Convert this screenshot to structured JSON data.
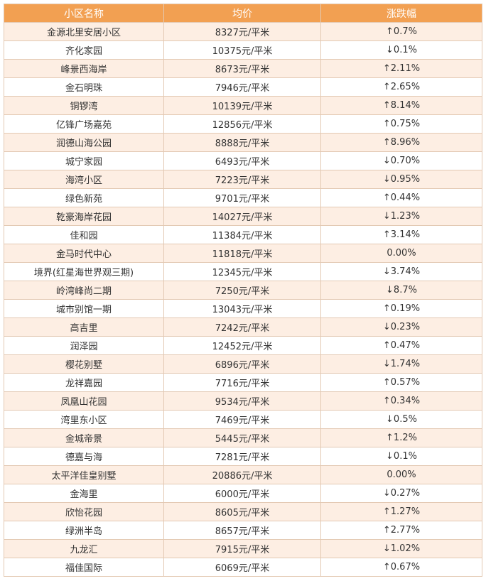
{
  "headers": {
    "name": "小区名称",
    "price": "均价",
    "change": "涨跌幅"
  },
  "rows": [
    {
      "name": "金源北里安居小区",
      "price": "8327元/平米",
      "change": "↑0.7%"
    },
    {
      "name": "齐化家园",
      "price": "10375元/平米",
      "change": "↓0.1%"
    },
    {
      "name": "峰景西海岸",
      "price": "8673元/平米",
      "change": "↑2.11%"
    },
    {
      "name": "金石明珠",
      "price": "7946元/平米",
      "change": "↑2.65%"
    },
    {
      "name": "铜锣湾",
      "price": "10139元/平米",
      "change": "↑8.14%"
    },
    {
      "name": "亿锋广场嘉苑",
      "price": "12856元/平米",
      "change": "↑0.75%"
    },
    {
      "name": "润德山海公园",
      "price": "8888元/平米",
      "change": "↑8.96%"
    },
    {
      "name": "城宁家园",
      "price": "6493元/平米",
      "change": "↓0.70%"
    },
    {
      "name": "海湾小区",
      "price": "7223元/平米",
      "change": "↓0.95%"
    },
    {
      "name": "绿色新苑",
      "price": "9701元/平米",
      "change": "↑0.44%"
    },
    {
      "name": "乾豪海岸花园",
      "price": "14027元/平米",
      "change": "↓1.23%"
    },
    {
      "name": "佳和园",
      "price": "11384元/平米",
      "change": "↑3.14%"
    },
    {
      "name": "金马时代中心",
      "price": "11818元/平米",
      "change": "0.00%"
    },
    {
      "name": "境界(红星海世界观三期)",
      "price": "12345元/平米",
      "change": "↓3.74%"
    },
    {
      "name": "岭湾峰尚二期",
      "price": "7250元/平米",
      "change": "↓8.7%"
    },
    {
      "name": "城市别馆一期",
      "price": "13043元/平米",
      "change": "↑0.19%"
    },
    {
      "name": "高吉里",
      "price": "7242元/平米",
      "change": "↓0.23%"
    },
    {
      "name": "润泽园",
      "price": "12452元/平米",
      "change": "↑0.47%"
    },
    {
      "name": "樱花别墅",
      "price": "6896元/平米",
      "change": "↓1.74%"
    },
    {
      "name": "龙祥嘉园",
      "price": "7716元/平米",
      "change": "↑0.57%"
    },
    {
      "name": "凤凰山花园",
      "price": "9534元/平米",
      "change": "↑0.34%"
    },
    {
      "name": "湾里东小区",
      "price": "7469元/平米",
      "change": "↓0.5%"
    },
    {
      "name": "金城帝景",
      "price": "5445元/平米",
      "change": "↑1.2%"
    },
    {
      "name": "德嘉与海",
      "price": "7281元/平米",
      "change": "↓0.1%"
    },
    {
      "name": "太平洋佳皇别墅",
      "price": "20886元/平米",
      "change": "0.00%"
    },
    {
      "name": "金海里",
      "price": "6000元/平米",
      "change": "↓0.27%"
    },
    {
      "name": "欣怡花园",
      "price": "8605元/平米",
      "change": "↑1.27%"
    },
    {
      "name": "绿洲半岛",
      "price": "8657元/平米",
      "change": "↑2.77%"
    },
    {
      "name": "九龙汇",
      "price": "7915元/平米",
      "change": "↓1.02%"
    },
    {
      "name": "福佳国际",
      "price": "6069元/平米",
      "change": "↑0.67%"
    }
  ]
}
